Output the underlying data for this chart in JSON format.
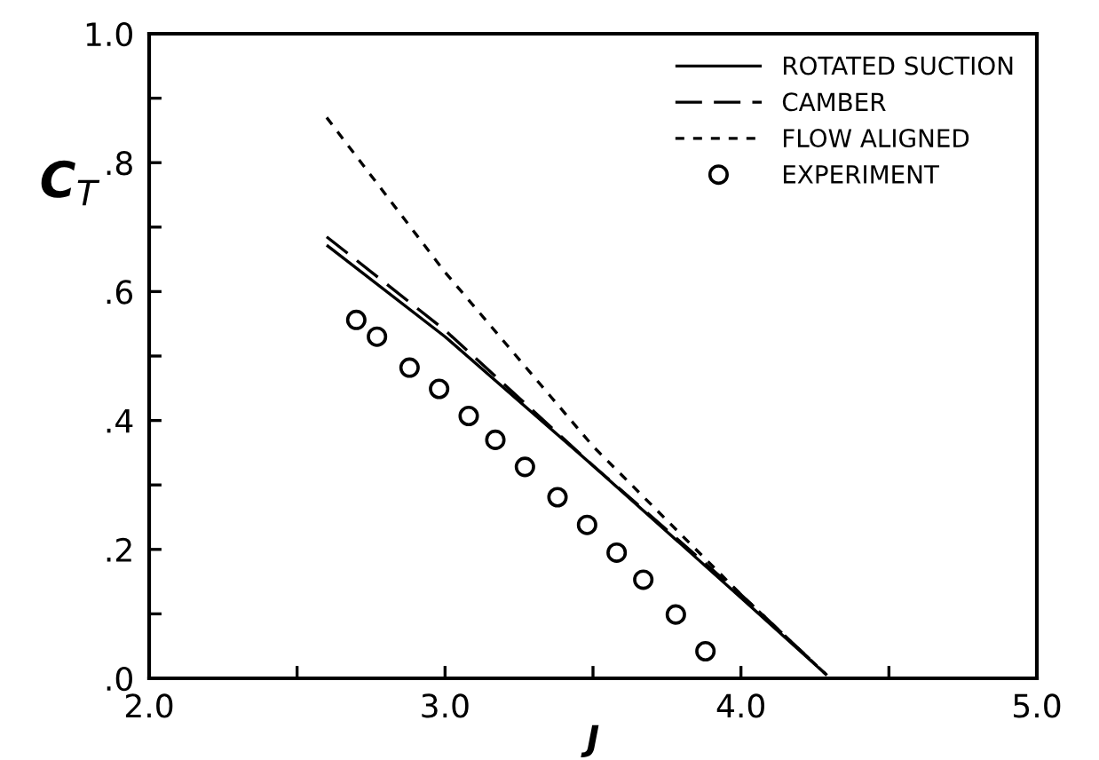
{
  "chart_data": {
    "type": "line",
    "xlabel": "J",
    "ylabel": "C$_{T}$",
    "xlim": [
      2.0,
      5.0
    ],
    "ylim": [
      0.0,
      1.0
    ],
    "xticks": [
      {
        "value": 2.0,
        "label": "2.0"
      },
      {
        "value": 2.5,
        "label": null
      },
      {
        "value": 3.0,
        "label": "3.0"
      },
      {
        "value": 3.5,
        "label": null
      },
      {
        "value": 4.0,
        "label": "4.0"
      },
      {
        "value": 4.5,
        "label": null
      },
      {
        "value": 5.0,
        "label": "5.0"
      }
    ],
    "yticks": [
      {
        "value": 0.0,
        "label": ".0"
      },
      {
        "value": 0.1,
        "label": null
      },
      {
        "value": 0.2,
        "label": ".2"
      },
      {
        "value": 0.3,
        "label": null
      },
      {
        "value": 0.4,
        "label": ".4"
      },
      {
        "value": 0.5,
        "label": null
      },
      {
        "value": 0.6,
        "label": ".6"
      },
      {
        "value": 0.7,
        "label": null
      },
      {
        "value": 0.8,
        "label": ".8"
      },
      {
        "value": 0.9,
        "label": null
      },
      {
        "value": 1.0,
        "label": "1.0"
      }
    ],
    "grid": false,
    "legend": "top right",
    "series": [
      {
        "name": "ROTATED SUCTION",
        "color": "#000000",
        "line_style": "solid",
        "marker": "none",
        "x": [
          2.6,
          3.0,
          3.5,
          4.0,
          4.29
        ],
        "values": [
          0.672,
          0.53,
          0.33,
          0.125,
          0.005
        ]
      },
      {
        "name": "CAMBER",
        "color": "#000000",
        "line_style": "dashed",
        "marker": "none",
        "x": [
          2.6,
          3.0,
          3.5,
          4.0,
          4.29
        ],
        "values": [
          0.685,
          0.54,
          0.33,
          0.13,
          0.005
        ]
      },
      {
        "name": "FLOW ALIGNED",
        "color": "#000000",
        "line_style": "dotted",
        "marker": "none",
        "x": [
          2.6,
          3.0,
          3.5,
          4.0,
          4.29
        ],
        "values": [
          0.87,
          0.63,
          0.36,
          0.13,
          0.005
        ]
      },
      {
        "name": "EXPERIMENT",
        "type": "scatter",
        "color": "#000000",
        "marker": "circle",
        "x": [
          2.7,
          2.77,
          2.88,
          2.98,
          3.08,
          3.17,
          3.27,
          3.38,
          3.48,
          3.58,
          3.67,
          3.78,
          3.88
        ],
        "values": [
          0.556,
          0.53,
          0.482,
          0.449,
          0.407,
          0.37,
          0.328,
          0.281,
          0.238,
          0.195,
          0.153,
          0.099,
          0.042
        ]
      }
    ]
  }
}
